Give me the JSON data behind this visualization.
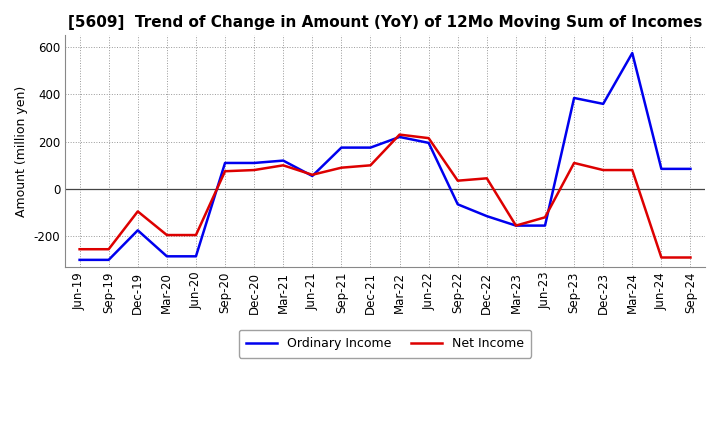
{
  "title": "[5609]  Trend of Change in Amount (YoY) of 12Mo Moving Sum of Incomes",
  "ylabel": "Amount (million yen)",
  "x_labels": [
    "Jun-19",
    "Sep-19",
    "Dec-19",
    "Mar-20",
    "Jun-20",
    "Sep-20",
    "Dec-20",
    "Mar-21",
    "Jun-21",
    "Sep-21",
    "Dec-21",
    "Mar-22",
    "Jun-22",
    "Sep-22",
    "Dec-22",
    "Mar-23",
    "Jun-23",
    "Sep-23",
    "Dec-23",
    "Mar-24",
    "Jun-24",
    "Sep-24"
  ],
  "ordinary_income": [
    -300,
    -300,
    -175,
    -285,
    -285,
    110,
    110,
    120,
    55,
    175,
    175,
    220,
    195,
    -65,
    -115,
    -155,
    -155,
    385,
    360,
    575,
    85,
    85
  ],
  "net_income": [
    -255,
    -255,
    -95,
    -195,
    -195,
    75,
    80,
    100,
    60,
    90,
    100,
    230,
    215,
    35,
    45,
    -155,
    -120,
    110,
    80,
    80,
    -290,
    -290
  ],
  "ylim": [
    -330,
    650
  ],
  "yticks": [
    -200,
    0,
    200,
    400,
    600
  ],
  "ordinary_color": "#0000EE",
  "net_color": "#DD0000",
  "background_color": "#FFFFFF",
  "grid_color": "#999999",
  "linewidth": 1.8,
  "title_fontsize": 11,
  "axis_fontsize": 9,
  "tick_fontsize": 8.5
}
